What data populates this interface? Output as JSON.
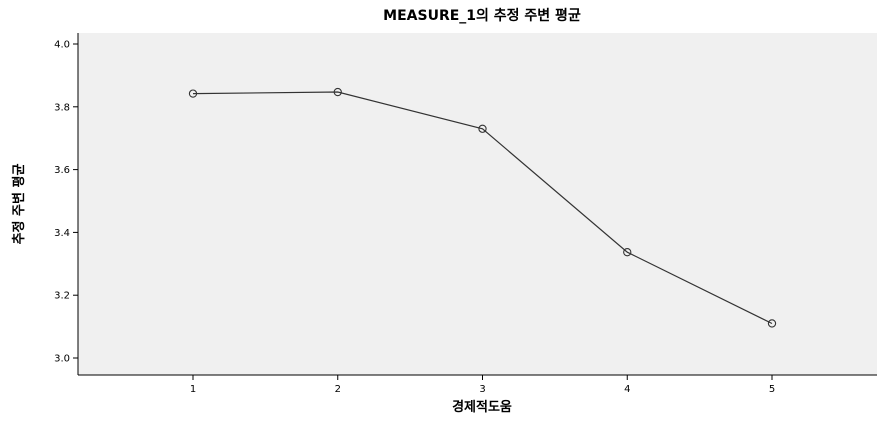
{
  "chart_data": {
    "type": "line",
    "title": "MEASURE_1의 추정 주변 평균",
    "xlabel": "경제적도움",
    "ylabel": "추정 주변 평균",
    "categories": [
      "1",
      "2",
      "3",
      "4",
      "5"
    ],
    "series": [
      {
        "values": [
          3.842,
          3.847,
          3.73,
          3.337,
          3.11
        ]
      }
    ],
    "yticks": [
      "3.0",
      "3.2",
      "3.4",
      "3.6",
      "3.8",
      "4.0"
    ],
    "ylim": [
      3.0,
      4.0
    ],
    "grid": false,
    "legend": "none",
    "colors": {
      "plot_background": "#f0f0f0",
      "line": "#333333",
      "marker_stroke": "#333333",
      "axis": "#000000"
    },
    "marker": "open-circle"
  }
}
